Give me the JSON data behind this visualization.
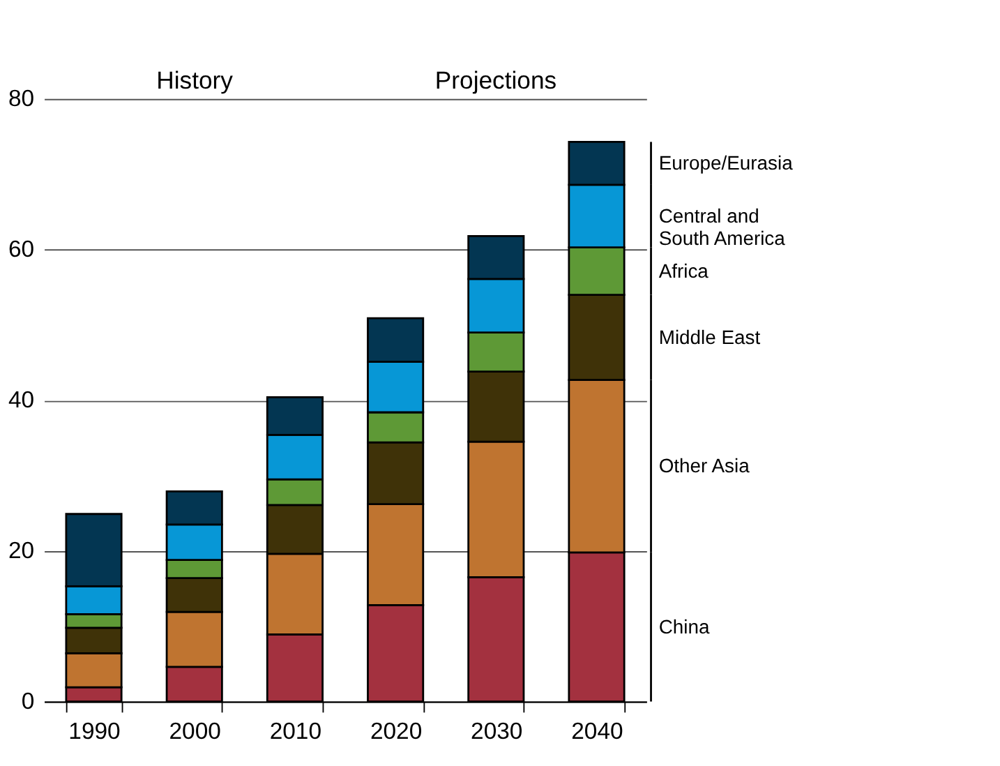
{
  "chart_data": {
    "type": "bar",
    "stacked": true,
    "categories": [
      "1990",
      "2000",
      "2010",
      "2020",
      "2030",
      "2040"
    ],
    "series": [
      {
        "name": "China",
        "color": "#a3313f",
        "values": [
          1.9,
          4.6,
          8.9,
          12.8,
          16.5,
          19.8
        ]
      },
      {
        "name": "Other Asia",
        "color": "#bf7430",
        "values": [
          4.5,
          7.3,
          10.7,
          13.4,
          18.0,
          22.9
        ]
      },
      {
        "name": "Middle East",
        "color": "#3f3208",
        "values": [
          3.4,
          4.5,
          6.5,
          8.2,
          9.3,
          11.3
        ]
      },
      {
        "name": "Africa",
        "color": "#5e9936",
        "values": [
          1.8,
          2.4,
          3.4,
          4.0,
          5.2,
          6.3
        ]
      },
      {
        "name": "Central and South America",
        "color": "#0797d6",
        "values": [
          3.7,
          4.7,
          5.9,
          6.7,
          7.1,
          8.3
        ]
      },
      {
        "name": "Europe/Eurasia",
        "color": "#033652",
        "values": [
          9.6,
          4.4,
          5.0,
          5.8,
          5.7,
          5.7
        ]
      }
    ],
    "ylim": [
      0,
      80
    ],
    "yticks": [
      0,
      20,
      40,
      60,
      80
    ],
    "grid": "y",
    "annotations": [
      "History",
      "Projections"
    ]
  }
}
